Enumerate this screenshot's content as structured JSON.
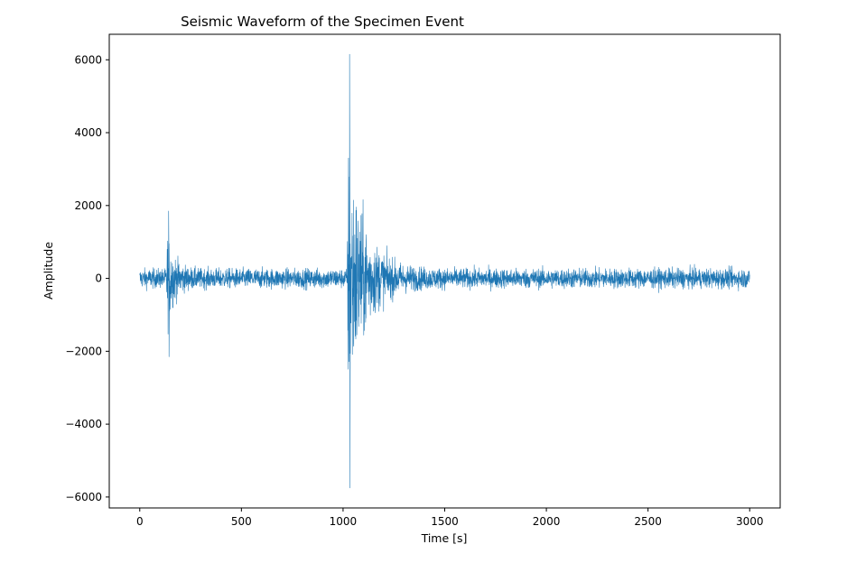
{
  "chart_data": {
    "type": "line",
    "title": "Seismic Waveform of the Specimen Event",
    "xlabel": "Time [s]",
    "ylabel": "Amplitude",
    "xlim": [
      -150,
      3150
    ],
    "ylim": [
      -6300,
      6700
    ],
    "xticks": [
      0,
      500,
      1000,
      1500,
      2000,
      2500,
      3000
    ],
    "xtick_labels": [
      "0",
      "500",
      "1000",
      "1500",
      "2000",
      "2500",
      "3000"
    ],
    "yticks": [
      -6000,
      -4000,
      -2000,
      0,
      2000,
      4000,
      6000
    ],
    "ytick_labels": [
      "−6000",
      "−4000",
      "−2000",
      "0",
      "2000",
      "4000",
      "6000"
    ],
    "grid": false,
    "series": [
      {
        "color": "#1f77b4",
        "x_range": [
          0,
          3000
        ],
        "noise_amplitude": 250,
        "events": [
          {
            "onset_time": 130,
            "peak_amplitude": 1850,
            "min_amplitude": -2150,
            "decay": 35
          },
          {
            "onset_time": 1020,
            "peak_amplitude": 6150,
            "min_amplitude": -5750,
            "decay": 85
          }
        ]
      }
    ]
  }
}
